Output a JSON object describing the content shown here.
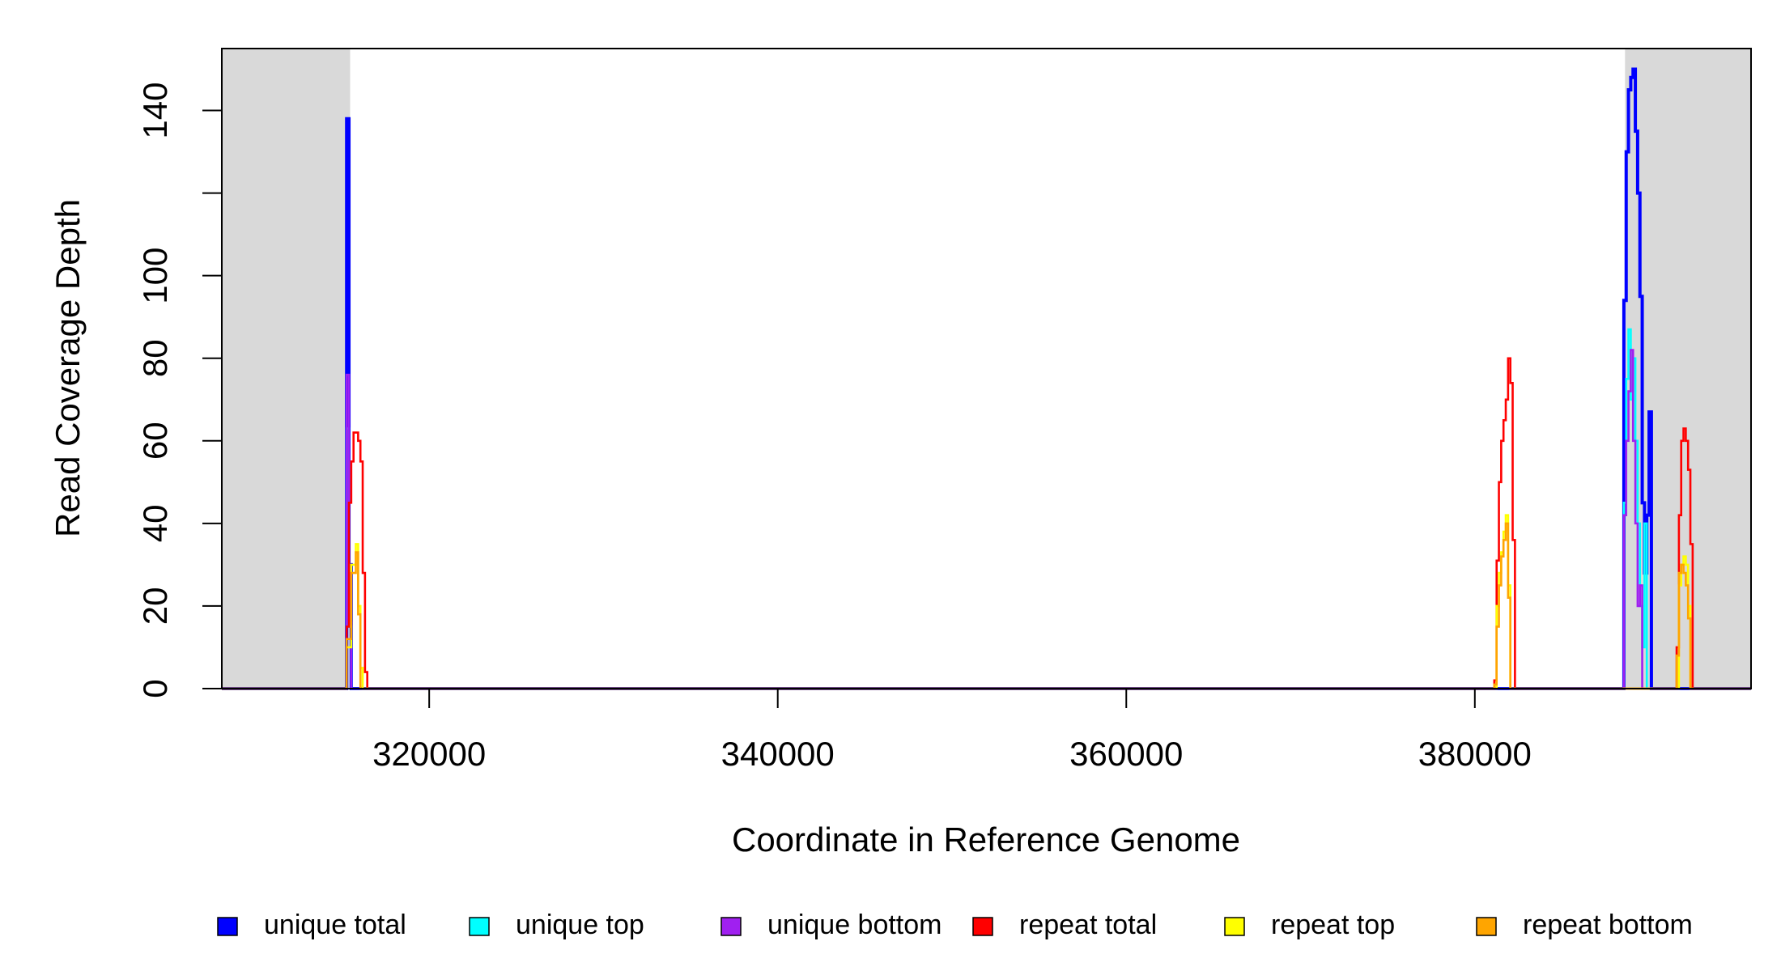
{
  "chart_data": {
    "type": "line",
    "step": true,
    "x_label": "Coordinate in Reference Genome",
    "y_label": "Read Coverage Depth",
    "xlim": [
      308100,
      395850
    ],
    "ylim": [
      0,
      155
    ],
    "xticks": [
      320000,
      340000,
      360000,
      380000
    ],
    "yticks": [
      0,
      20,
      40,
      60,
      80,
      100,
      {
        "value": 120,
        "label": null
      },
      140
    ],
    "shaded_regions": [
      [
        308100,
        315461
      ],
      [
        388618,
        395850
      ]
    ],
    "shade_color": "#d9d9d9",
    "legend": "bottom",
    "series": [
      {
        "name": "unique total",
        "color": "#0000ff",
        "x": [
          308100,
          315200,
          315263,
          315395,
          315526,
          315658,
          388553,
          388685,
          388816,
          388948,
          389079,
          389211,
          389342,
          389474,
          389605,
          389737,
          389868,
          390000,
          390132,
          390263,
          395850
        ],
        "values": [
          0,
          0,
          138,
          30,
          0,
          0,
          94,
          130,
          145,
          148,
          150,
          135,
          120,
          95,
          45,
          28,
          42,
          67,
          0,
          0,
          0
        ]
      },
      {
        "name": "unique top",
        "color": "#00ffff",
        "x": [
          308100,
          315263,
          315395,
          315526,
          388553,
          388685,
          388816,
          388948,
          389079,
          389211,
          389342,
          389474,
          389605,
          389737,
          389868,
          390000,
          395850
        ],
        "values": [
          0,
          63,
          15,
          0,
          45,
          75,
          87,
          70,
          80,
          60,
          40,
          20,
          10,
          40,
          0,
          0,
          0
        ]
      },
      {
        "name": "unique bottom",
        "color": "#a020f0",
        "x": [
          308100,
          315263,
          315395,
          315526,
          388553,
          388685,
          388816,
          388948,
          389079,
          389211,
          389342,
          389474,
          389605,
          395850
        ],
        "values": [
          0,
          76,
          16,
          0,
          42,
          60,
          72,
          82,
          60,
          40,
          20,
          25,
          0,
          0
        ]
      },
      {
        "name": "repeat total",
        "color": "#ff0000",
        "x": [
          308100,
          315263,
          315395,
          315526,
          315658,
          315790,
          315921,
          316053,
          316184,
          316316,
          316447,
          381118,
          381250,
          381382,
          381513,
          381645,
          381776,
          381908,
          382039,
          382171,
          382303,
          391579,
          391711,
          391842,
          391974,
          392105,
          392237,
          392368,
          392500,
          395850
        ],
        "values": [
          0,
          15,
          45,
          55,
          62,
          62,
          60,
          55,
          28,
          4,
          0,
          2,
          31,
          50,
          60,
          65,
          70,
          80,
          74,
          36,
          0,
          10,
          42,
          60,
          63,
          60,
          53,
          35,
          0,
          0
        ]
      },
      {
        "name": "repeat top",
        "color": "#ffff00",
        "x": [
          308100,
          315263,
          315526,
          315658,
          315790,
          315921,
          316053,
          316184,
          381250,
          381382,
          381513,
          381645,
          381776,
          381908,
          382039,
          391711,
          391842,
          391974,
          392105,
          392237,
          392368,
          395850
        ],
        "values": [
          0,
          10,
          30,
          30,
          35,
          20,
          5,
          0,
          20,
          28,
          33,
          38,
          42,
          25,
          0,
          25,
          30,
          32,
          30,
          20,
          0,
          0
        ]
      },
      {
        "name": "repeat bottom",
        "color": "#ffa500",
        "x": [
          308100,
          315263,
          315526,
          315790,
          315921,
          316053,
          381118,
          381250,
          381382,
          381513,
          381645,
          381776,
          381908,
          382039,
          391579,
          391711,
          391842,
          391974,
          392105,
          392237,
          392368,
          395850
        ],
        "values": [
          0,
          12,
          28,
          33,
          18,
          0,
          1,
          15,
          25,
          32,
          36,
          40,
          22,
          0,
          8,
          28,
          30,
          28,
          25,
          17,
          0,
          0
        ]
      }
    ]
  }
}
